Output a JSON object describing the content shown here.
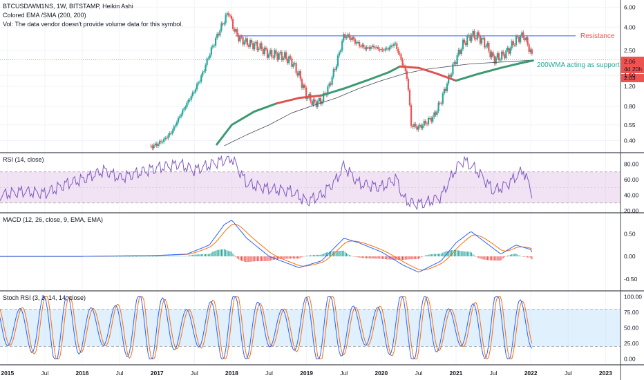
{
  "header": {
    "symbol_line": "BTCUSD/WM1NS, 1W, BITSTAMP, Heikin Ashi",
    "indicator_line": "Colored EMA /SMA (200, 200)",
    "vol_line": "Vol: The data vendor doesn't provide volume data for this symbol."
  },
  "annotations": {
    "resistance": "Resistance",
    "support": "200WMA acting as support"
  },
  "price_badges": {
    "last": "2.06",
    "countdown": "4d 20h",
    "ema": "2.03"
  },
  "colors": {
    "up": "#26a69a",
    "down": "#ef5350",
    "resistance": "#2962ff",
    "ema_green": "#3d9970",
    "ema_red": "#e0524f",
    "rsi": "#7e57c2",
    "rsi_band": "#e1bee7",
    "macd": "#2962ff",
    "signal": "#ff6d00",
    "stoch_k": "#2962ff",
    "stoch_d": "#ff6d00",
    "stoch_band": "#bbdefb"
  },
  "panes": {
    "rsi_title": "RSI (14, close)",
    "macd_title": "MACD (12, 26, close, 9, EMA, EMA)",
    "stoch_title": "Stoch RSI (3, 3, 14, 14, close)"
  },
  "chart_data": [
    {
      "type": "candlestick",
      "name": "BTCUSD/WM1NS Heikin Ashi weekly",
      "log_scale": true,
      "y_ticks": [
        "6.00",
        "4.00",
        "2.50",
        "1.50",
        "1.20",
        "0.80",
        "0.55",
        "0.40"
      ],
      "x_ticks": [
        "2015",
        "Jul",
        "2016",
        "Jul",
        "2017",
        "Jul",
        "2018",
        "Jul",
        "2019",
        "Jul",
        "2020",
        "Jul",
        "2021",
        "Jul",
        "2022",
        "Jul",
        "2023"
      ],
      "ylim": [
        0.35,
        6.2
      ],
      "xlim": [
        2014.9,
        2023.2
      ],
      "series": [
        {
          "name": "price",
          "x": [
            2016.9,
            2017.0,
            2017.1,
            2017.2,
            2017.3,
            2017.4,
            2017.5,
            2017.6,
            2017.7,
            2017.8,
            2017.9,
            2017.96,
            2018.0,
            2018.05,
            2018.1,
            2018.2,
            2018.3,
            2018.4,
            2018.5,
            2018.6,
            2018.7,
            2018.8,
            2018.9,
            2019.0,
            2019.1,
            2019.2,
            2019.3,
            2019.4,
            2019.5,
            2019.6,
            2019.7,
            2019.8,
            2019.9,
            2020.0,
            2020.1,
            2020.18,
            2020.25,
            2020.3,
            2020.35,
            2020.4,
            2020.5,
            2020.6,
            2020.7,
            2020.8,
            2020.9,
            2021.0,
            2021.1,
            2021.2,
            2021.3,
            2021.4,
            2021.5,
            2021.6,
            2021.7,
            2021.8,
            2021.9,
            2021.95,
            2022.0,
            2022.03
          ],
          "y": [
            0.35,
            0.37,
            0.41,
            0.48,
            0.65,
            0.85,
            1.1,
            1.5,
            2.3,
            3.3,
            4.6,
            5.5,
            4.3,
            3.6,
            3.2,
            2.9,
            2.8,
            2.6,
            2.3,
            2.3,
            2.2,
            2.0,
            1.5,
            1.0,
            0.85,
            0.9,
            1.2,
            1.9,
            3.4,
            3.2,
            2.8,
            2.6,
            2.7,
            2.5,
            2.6,
            2.9,
            2.2,
            1.8,
            1.4,
            0.55,
            0.52,
            0.58,
            0.65,
            0.9,
            1.4,
            2.1,
            2.9,
            3.4,
            3.3,
            2.8,
            2.1,
            2.2,
            2.5,
            3.1,
            3.4,
            2.9,
            2.4,
            2.06
          ]
        },
        {
          "name": "Colored EMA (200)",
          "x": [
            2017.8,
            2018.0,
            2018.3,
            2018.6,
            2018.9,
            2019.2,
            2019.5,
            2019.8,
            2020.1,
            2020.25,
            2020.5,
            2020.75,
            2021.0,
            2021.3,
            2021.6,
            2021.9,
            2022.03
          ],
          "y": [
            0.37,
            0.55,
            0.72,
            0.85,
            0.95,
            1.0,
            1.15,
            1.35,
            1.6,
            1.8,
            1.75,
            1.55,
            1.35,
            1.55,
            1.75,
            1.95,
            2.03
          ]
        },
        {
          "name": "SMA (200)",
          "x": [
            2017.9,
            2018.2,
            2018.5,
            2018.8,
            2019.1,
            2019.4,
            2019.7,
            2020.0,
            2020.3,
            2020.6,
            2020.9,
            2021.2,
            2021.5,
            2021.8,
            2022.03
          ],
          "y": [
            0.36,
            0.45,
            0.55,
            0.7,
            0.82,
            0.95,
            1.15,
            1.35,
            1.55,
            1.7,
            1.8,
            1.9,
            1.95,
            2.0,
            2.05
          ]
        }
      ],
      "resistance_level": 3.35
    },
    {
      "type": "line",
      "name": "RSI (14, close)",
      "y_ticks": [
        "80.00",
        "60.00",
        "40.00",
        "20.00"
      ],
      "ylim": [
        20,
        92
      ],
      "band": [
        30,
        70
      ],
      "x": [
        2014.9,
        2015.2,
        2015.5,
        2015.8,
        2016.0,
        2016.3,
        2016.5,
        2016.8,
        2017.0,
        2017.3,
        2017.5,
        2017.8,
        2018.0,
        2018.2,
        2018.5,
        2018.8,
        2019.0,
        2019.2,
        2019.4,
        2019.5,
        2019.7,
        2020.0,
        2020.2,
        2020.3,
        2020.45,
        2020.6,
        2020.8,
        2021.0,
        2021.1,
        2021.3,
        2021.5,
        2021.7,
        2021.9,
        2022.03
      ],
      "y": [
        40,
        45,
        42,
        55,
        60,
        72,
        62,
        70,
        75,
        80,
        72,
        82,
        88,
        55,
        48,
        45,
        32,
        40,
        60,
        78,
        55,
        50,
        62,
        35,
        28,
        30,
        38,
        75,
        85,
        70,
        45,
        55,
        72,
        40
      ]
    },
    {
      "type": "line",
      "name": "MACD (12, 26, close, 9, EMA, EMA)",
      "y_ticks": [
        "0.50",
        "0.00",
        "-0.50"
      ],
      "ylim": [
        -0.7,
        0.9
      ],
      "series": [
        {
          "name": "MACD",
          "x": [
            2014.9,
            2016.0,
            2017.0,
            2017.4,
            2017.7,
            2017.9,
            2018.0,
            2018.2,
            2018.5,
            2018.9,
            2019.2,
            2019.5,
            2019.7,
            2020.0,
            2020.3,
            2020.5,
            2020.8,
            2021.0,
            2021.2,
            2021.4,
            2021.6,
            2021.8,
            2022.0,
            2022.03
          ],
          "y": [
            0.0,
            0.0,
            0.02,
            0.05,
            0.25,
            0.7,
            0.8,
            0.4,
            0.0,
            -0.25,
            -0.1,
            0.4,
            0.3,
            0.1,
            -0.2,
            -0.35,
            -0.1,
            0.3,
            0.55,
            0.3,
            0.05,
            0.25,
            0.15,
            0.05
          ]
        }
      ]
    },
    {
      "type": "line",
      "name": "Stoch RSI (3, 3, 14, 14, close)",
      "y_ticks": [
        "100.00",
        "75.00",
        "50.00",
        "25.00",
        "0.00"
      ],
      "ylim": [
        -5,
        105
      ],
      "band": [
        20,
        80
      ]
    }
  ]
}
